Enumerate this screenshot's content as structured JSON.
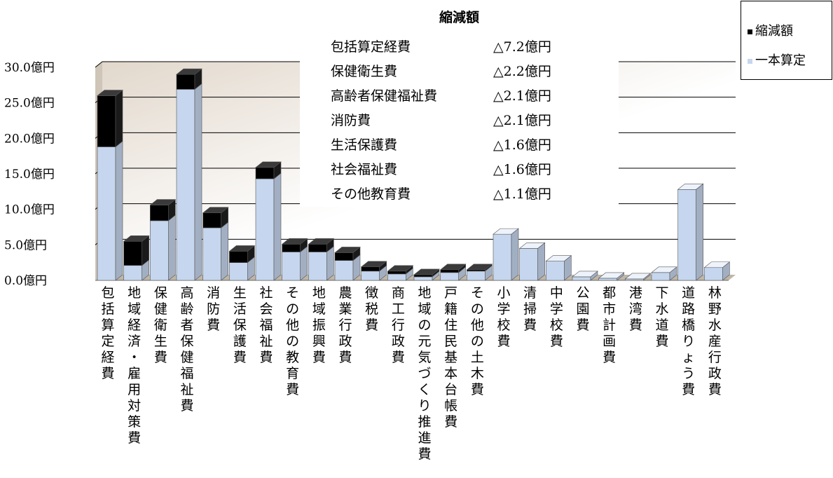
{
  "chart_data": {
    "type": "bar",
    "stacked": true,
    "title": "",
    "categories": [
      "包括算定経費",
      "地域経済・雇用対策費",
      "保健衛生費",
      "高齢者保健福祉費",
      "消防費",
      "生活保護費",
      "社会福祉費",
      "その他の教育費",
      "地域振興費",
      "農業行政費",
      "徴税費",
      "商工行政費",
      "地域の元気づくり推進費",
      "戸籍住民基本台帳費",
      "その他の土木費",
      "小学校費",
      "清掃費",
      "中学校費",
      "公園費",
      "都市計画費",
      "港湾費",
      "下水道費",
      "道路橋りょう費",
      "林野水産行政費"
    ],
    "series": [
      {
        "name": "一本算定",
        "color": "#c5d6ee",
        "values": [
          18.8,
          2.1,
          8.4,
          26.9,
          7.4,
          2.5,
          14.3,
          4.0,
          4.0,
          2.8,
          1.3,
          0.9,
          0.5,
          1.1,
          1.3,
          6.5,
          4.5,
          2.7,
          0.5,
          0.3,
          0.2,
          1.1,
          12.8,
          1.8
        ]
      },
      {
        "name": "縮減額",
        "color": "#000000",
        "values": [
          7.2,
          3.4,
          2.2,
          2.1,
          2.1,
          1.6,
          1.6,
          1.1,
          1.1,
          1.1,
          0.6,
          0.4,
          0.3,
          0.4,
          0.2,
          0,
          0,
          0,
          0,
          0,
          0,
          0,
          0,
          0
        ]
      }
    ],
    "ylim": [
      0,
      30
    ],
    "yticks": [
      "0.0億円",
      "5.0億円",
      "10.0億円",
      "15.0億円",
      "20.0億円",
      "25.0億円",
      "30.0億円"
    ],
    "grid": true,
    "legend_position": "top-right"
  },
  "note": {
    "title": "縮減額",
    "rows": [
      {
        "name": "包括算定経費",
        "value": "△7.2億円"
      },
      {
        "name": "保健衛生費",
        "value": "△2.2億円"
      },
      {
        "name": "高齢者保健福祉費",
        "value": "△2.1億円"
      },
      {
        "name": "消防費",
        "value": "△2.1億円"
      },
      {
        "name": "生活保護費",
        "value": "△1.6億円"
      },
      {
        "name": "社会福祉費",
        "value": "△1.6億円"
      },
      {
        "name": "その他教育費",
        "value": "△1.1億円"
      }
    ]
  },
  "legend": [
    {
      "label": "縮減額",
      "color": "#000000"
    },
    {
      "label": "一本算定",
      "color": "#c5d6ee"
    }
  ]
}
